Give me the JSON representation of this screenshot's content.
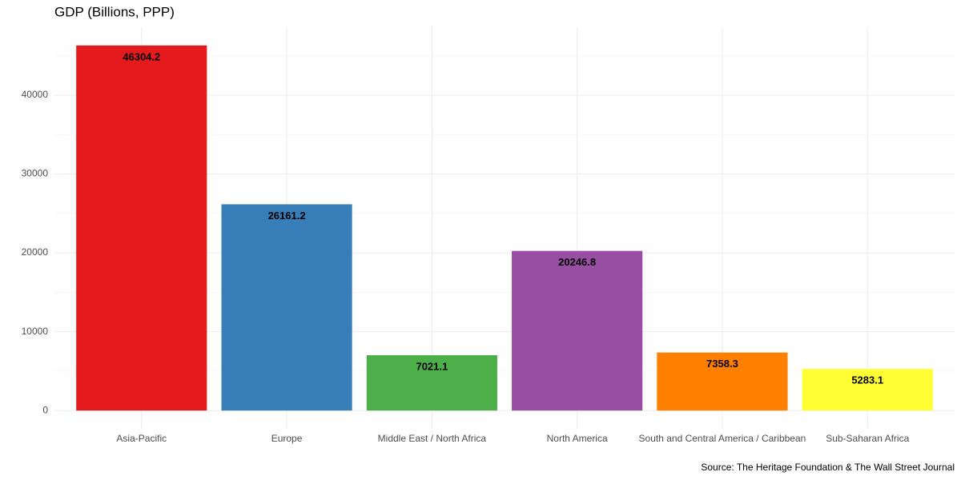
{
  "chart_data": {
    "type": "bar",
    "title": "GDP (Billions, PPP)",
    "caption": "Source: The Heritage Foundation & The Wall Street Journal",
    "categories": [
      "Asia-Pacific",
      "Europe",
      "Middle East / North Africa",
      "North America",
      "South and Central America / Caribbean",
      "Sub-Saharan Africa"
    ],
    "values": [
      46304.2,
      26161.2,
      7021.1,
      20246.8,
      7358.3,
      5283.1
    ],
    "colors": [
      "#E41A1C",
      "#377EB8",
      "#4DAF4A",
      "#984EA3",
      "#FF7F00",
      "#FFFF33"
    ],
    "ylim": [
      -2315,
      48619
    ],
    "yticks": [
      0,
      10000,
      20000,
      30000,
      40000
    ],
    "y_minor_ticks": [
      5000,
      15000,
      25000,
      35000,
      45000
    ],
    "grid": true
  }
}
